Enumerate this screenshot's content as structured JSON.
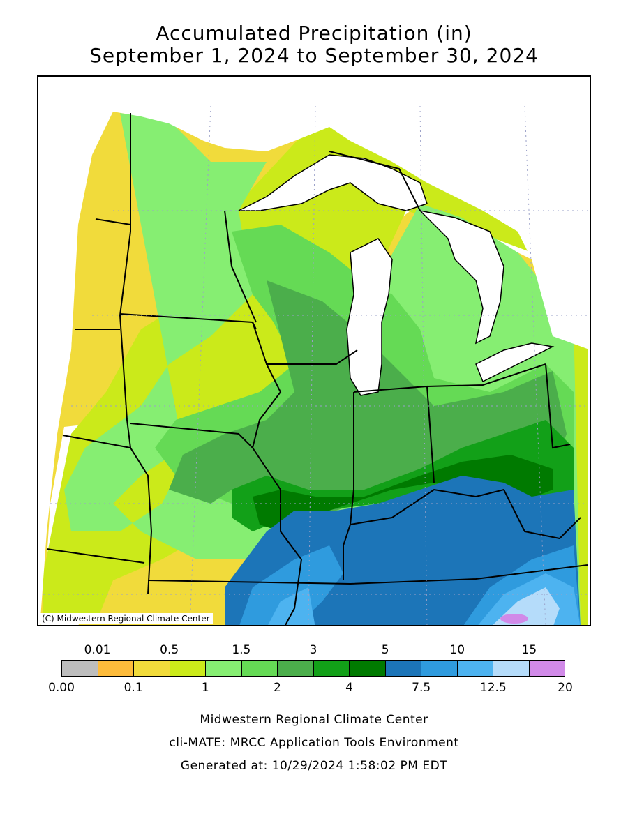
{
  "title": {
    "line1": "Accumulated Precipitation (in)",
    "line2": "September 1, 2024 to September 30, 2024"
  },
  "map": {
    "copyright": "(C) Midwestern Regional Climate Center"
  },
  "legend": {
    "colors": [
      "#bdbdbd",
      "#fdbb3b",
      "#f1db3b",
      "#cbea1a",
      "#86ee72",
      "#65da55",
      "#4bae4b",
      "#12a018",
      "#007a00",
      "#1c75b8",
      "#2f9bde",
      "#4db3f0",
      "#b5dcfa",
      "#d18ae8"
    ],
    "top_labels": [
      "0.01",
      "0.5",
      "1.5",
      "3",
      "5",
      "10",
      "15"
    ],
    "bottom_labels": [
      "0.00",
      "0.1",
      "1",
      "2",
      "4",
      "7.5",
      "12.5",
      "20"
    ]
  },
  "footer": {
    "line1": "Midwestern Regional Climate Center",
    "line2": "cli-MATE: MRCC Application Tools Environment",
    "line3": "Generated at: 10/29/2024 1:58:02 PM EDT"
  }
}
